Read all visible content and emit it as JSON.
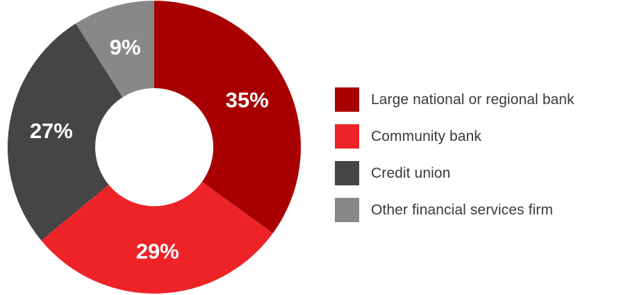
{
  "chart_data": {
    "type": "pie",
    "donut": true,
    "categories": [
      "Large national or regional bank",
      "Community bank",
      "Credit union",
      "Other financial services firm"
    ],
    "values": [
      35,
      29,
      27,
      9
    ],
    "value_labels": [
      "35%",
      "29%",
      "27%",
      "9%"
    ],
    "colors": [
      "#A80000",
      "#EE2328",
      "#454545",
      "#888888"
    ],
    "start_angle": "12 o'clock",
    "direction": "clockwise",
    "legend_position": "right"
  }
}
